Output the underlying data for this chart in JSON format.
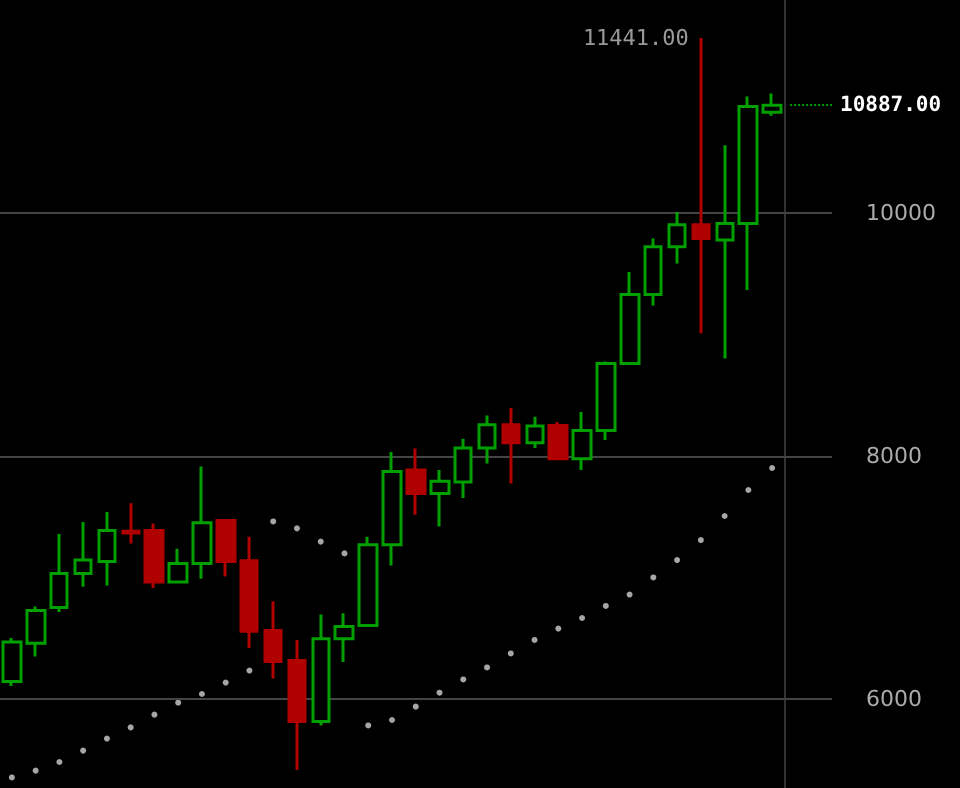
{
  "chart_data": {
    "type": "candlestick",
    "categories": [
      null,
      null,
      null,
      null,
      null,
      null,
      null,
      null,
      null,
      null,
      null,
      null,
      null,
      null,
      null,
      null,
      null,
      null,
      null,
      null,
      null,
      null,
      null,
      null,
      null,
      null,
      null,
      null,
      null,
      null,
      null,
      null,
      null
    ],
    "ohlc": [
      [
        6143,
        6500,
        6105,
        6467
      ],
      [
        6456,
        6759,
        6347,
        6726
      ],
      [
        6752,
        7357,
        6714,
        7032
      ],
      [
        7032,
        7455,
        6923,
        7143
      ],
      [
        7131,
        7538,
        6933,
        7385
      ],
      [
        7380,
        7609,
        7279,
        7365
      ],
      [
        7385,
        7444,
        6912,
        6961
      ],
      [
        6961,
        7236,
        6950,
        7114
      ],
      [
        7114,
        7912,
        6989,
        7450
      ],
      [
        7467,
        7467,
        7006,
        7131
      ],
      [
        7137,
        7335,
        6418,
        6555
      ],
      [
        6561,
        6802,
        6166,
        6307
      ],
      [
        6314,
        6484,
        5413,
        5813
      ],
      [
        5813,
        6693,
        5780,
        6495
      ],
      [
        6495,
        6703,
        6302,
        6594
      ],
      [
        6604,
        7335,
        6594,
        7269
      ],
      [
        7269,
        8032,
        7098,
        7872
      ],
      [
        7884,
        8060,
        7516,
        7691
      ],
      [
        7691,
        7884,
        7418,
        7790
      ],
      [
        7785,
        8142,
        7653,
        8065
      ],
      [
        8065,
        8333,
        7938,
        8257
      ],
      [
        8257,
        8394,
        7773,
        8109
      ],
      [
        8109,
        8323,
        8065,
        8246
      ],
      [
        8251,
        8279,
        7977,
        7977
      ],
      [
        7977,
        8361,
        7884,
        8208
      ],
      [
        8208,
        8778,
        8131,
        8761
      ],
      [
        8761,
        9514,
        8761,
        9328
      ],
      [
        9328,
        9789,
        9239,
        9723
      ],
      [
        9723,
        10008,
        9585,
        9904
      ],
      [
        9904,
        11441,
        9009,
        9789
      ],
      [
        9778,
        10557,
        8801,
        9914
      ],
      [
        9914,
        10959,
        9366,
        10876
      ],
      [
        10830,
        10985,
        10800,
        10887
      ]
    ],
    "colors": [
      "#00a000",
      "#00a000",
      "#00a000",
      "#00a000",
      "#00a000",
      "#b00000",
      "#b00000",
      "#00a000",
      "#00a000",
      "#b00000",
      "#b00000",
      "#b00000",
      "#b00000",
      "#00a000",
      "#00a000",
      "#00a000",
      "#00a000",
      "#b00000",
      "#00a000",
      "#00a000",
      "#00a000",
      "#b00000",
      "#00a000",
      "#b00000",
      "#00a000",
      "#00a000",
      "#00a000",
      "#00a000",
      "#00a000",
      "#b00000",
      "#00a000",
      "#00a000",
      "#00a000"
    ],
    "series": [
      {
        "type": "scatter",
        "color": "#d0d0d0",
        "values": [
          5352,
          5408,
          5479,
          5573,
          5672,
          5764,
          5869,
          5968,
          6039,
          6133,
          6232,
          7460,
          7403,
          7294,
          7197,
          5780,
          5825,
          5935,
          6050,
          6159,
          6258,
          6373,
          6484,
          6578,
          6665,
          6764,
          6858,
          6999,
          7142,
          7307,
          7505,
          7719,
          7900
        ]
      }
    ],
    "ylim": [
      5265,
      11754
    ],
    "yticks": [
      6000,
      8000,
      10000
    ],
    "ref_lines": [
      {
        "axis": "y",
        "value": 10887,
        "label": "10887.00",
        "color": "#00a000",
        "line_style": "dotted"
      }
    ],
    "annotations": [
      "11441.00"
    ],
    "grid": "y",
    "tick_labels": "y",
    "marker": "circle"
  }
}
